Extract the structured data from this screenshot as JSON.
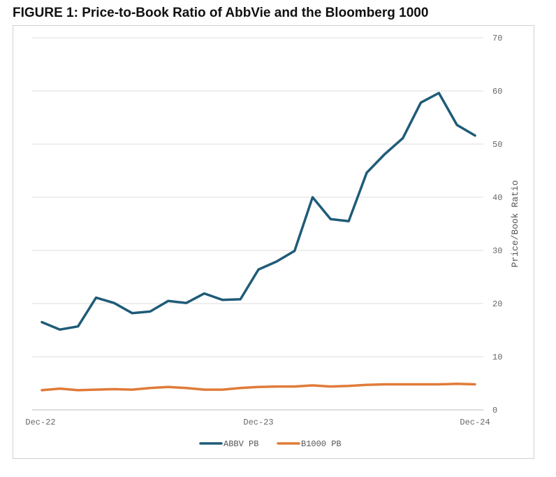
{
  "figure_title": "FIGURE 1: Price-to-Book Ratio of AbbVie and the Bloomberg 1000",
  "chart_data": {
    "type": "line",
    "title": "FIGURE 1: Price-to-Book Ratio of AbbVie and the Bloomberg 1000",
    "xlabel": "",
    "ylabel": "Price/Book Ratio",
    "ylim": [
      0,
      70
    ],
    "yticks": [
      "0",
      "10",
      "20",
      "30",
      "40",
      "50",
      "60",
      "70"
    ],
    "xtick_labels": [
      "Dec-22",
      "Dec-23",
      "Dec-24"
    ],
    "x": [
      "2022-12-31",
      "2023-01-31",
      "2023-02-28",
      "2023-03-31",
      "2023-04-30",
      "2023-05-31",
      "2023-06-30",
      "2023-07-31",
      "2023-08-31",
      "2023-09-30",
      "2023-10-31",
      "2023-11-30",
      "2023-12-31",
      "2024-01-31",
      "2024-02-29",
      "2024-03-31",
      "2024-04-30",
      "2024-05-31",
      "2024-06-30",
      "2024-07-31",
      "2024-08-31",
      "2024-09-30",
      "2024-10-31",
      "2024-11-30",
      "2024-12-31"
    ],
    "grid": true,
    "legend_position": "bottom-center",
    "series": [
      {
        "name": "ABBV PB",
        "color": "#1f5b78",
        "values": [
          16.5,
          15.1,
          15.7,
          21.1,
          20.1,
          18.2,
          18.5,
          20.5,
          20.1,
          21.9,
          20.7,
          20.8,
          26.4,
          27.9,
          29.9,
          40.0,
          35.9,
          35.5,
          44.6,
          48.1,
          51.1,
          57.8,
          59.6,
          53.6,
          51.6
        ]
      },
      {
        "name": "B1000 PB",
        "color": "#e07b39",
        "values": [
          3.7,
          4.0,
          3.7,
          3.8,
          3.9,
          3.8,
          4.1,
          4.3,
          4.1,
          3.8,
          3.8,
          4.1,
          4.3,
          4.4,
          4.4,
          4.6,
          4.4,
          4.5,
          4.7,
          4.8,
          4.8,
          4.8,
          4.8,
          4.9,
          4.8
        ]
      }
    ]
  }
}
